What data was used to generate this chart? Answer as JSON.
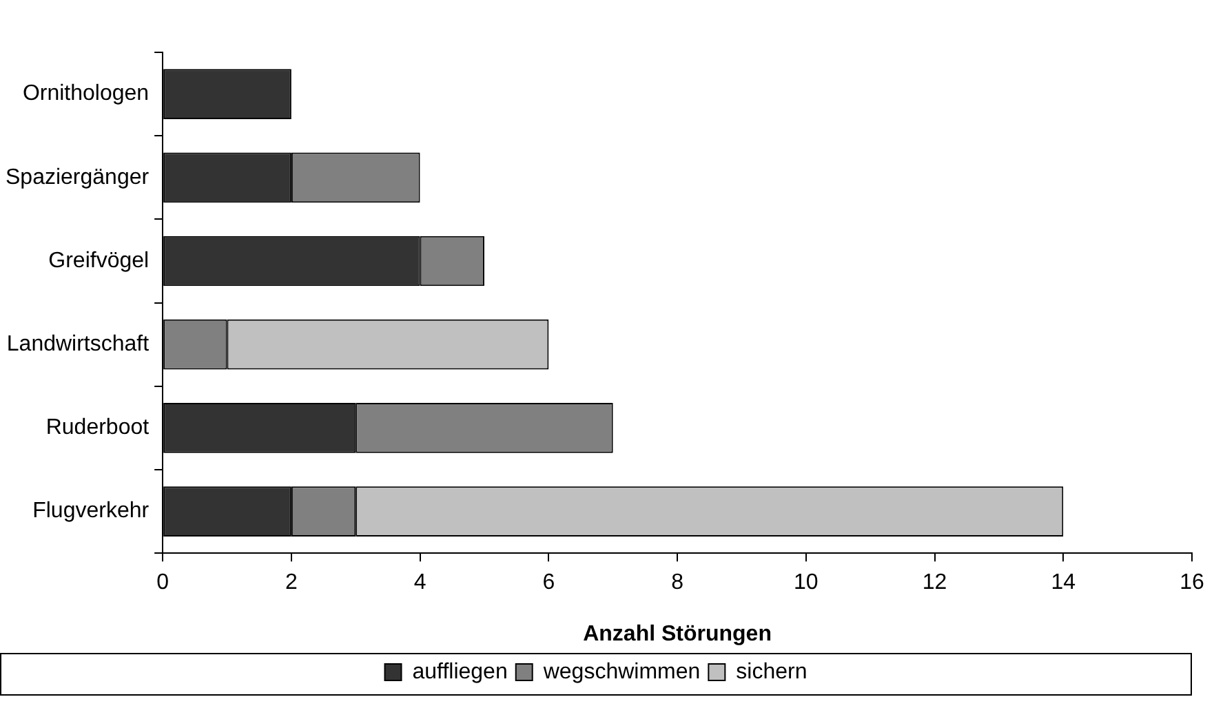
{
  "chart_data": {
    "type": "bar",
    "orientation": "horizontal",
    "stacked": true,
    "xlabel": "Anzahl Störungen",
    "categories": [
      "Ornithologen",
      "Spaziergänger",
      "Greifvögel",
      "Landwirtschaft",
      "Ruderboot",
      "Flugverkehr"
    ],
    "series": [
      {
        "name": "auffliegen",
        "color": "#333333",
        "values": [
          2,
          2,
          4,
          0,
          3,
          2
        ]
      },
      {
        "name": "wegschwimmen",
        "color": "#808080",
        "values": [
          0,
          2,
          1,
          1,
          4,
          1
        ]
      },
      {
        "name": "sichern",
        "color": "#c0c0c0",
        "values": [
          0,
          0,
          0,
          5,
          0,
          11
        ]
      }
    ],
    "xlim": [
      0,
      16
    ],
    "xticks": [
      0,
      2,
      4,
      6,
      8,
      10,
      12,
      14,
      16
    ],
    "grid": false,
    "legend": "bottom"
  }
}
